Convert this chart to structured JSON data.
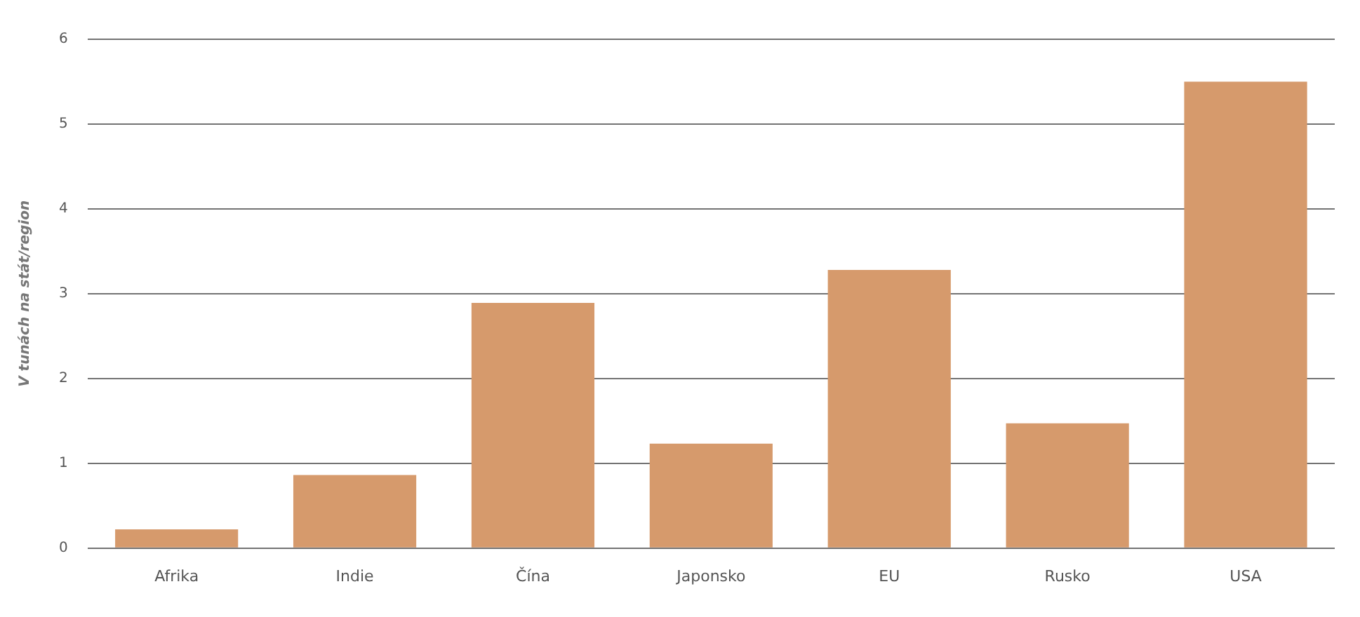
{
  "chart_data": {
    "type": "bar",
    "ylabel": "V tunách na stát/region",
    "categories": [
      "Afrika",
      "Indie",
      "Čína",
      "Japonsko",
      "EU",
      "Rusko",
      "USA"
    ],
    "values": [
      0.22,
      0.86,
      2.89,
      1.23,
      3.28,
      1.47,
      5.5
    ],
    "color": "#d69a6c",
    "ylim": [
      0,
      6
    ],
    "yticks": [
      0,
      1,
      2,
      3,
      4,
      5,
      6
    ],
    "grid": "y",
    "legend": false
  }
}
